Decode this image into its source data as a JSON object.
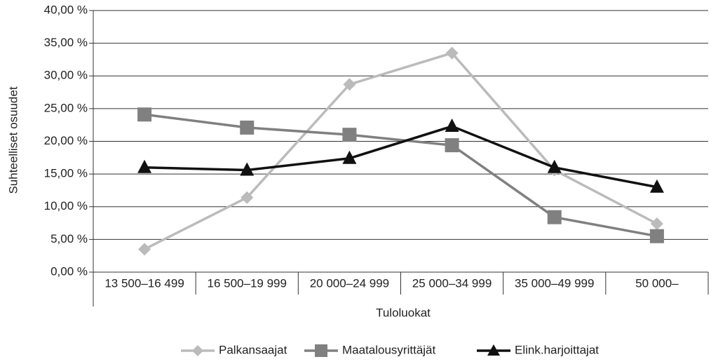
{
  "chart_data": {
    "type": "line",
    "y_label": "Suhteelliset osuudet",
    "x_label": "Tuloluokat",
    "categories": [
      "13 500–16 499",
      "16 500–19 999",
      "20 000–24 999",
      "25 000–34 999",
      "35 000–49 999",
      "50 000–"
    ],
    "series": [
      {
        "name": "Palkansaajat",
        "color": "#bbbbbb",
        "marker": "diamond",
        "values": [
          3.5,
          11.4,
          28.7,
          33.5,
          15.6,
          7.4
        ]
      },
      {
        "name": "Maatalousyrittäjät",
        "color": "#808080",
        "marker": "square",
        "values": [
          24.1,
          22.1,
          21.0,
          19.4,
          8.4,
          5.5
        ]
      },
      {
        "name": "Elink.harjoittajat",
        "color": "#111111",
        "marker": "triangle",
        "values": [
          16.0,
          15.6,
          17.4,
          22.3,
          16.0,
          13.0
        ]
      }
    ],
    "ylim": [
      0,
      40
    ],
    "yticks": [
      {
        "value": 0,
        "label": "0,00 %"
      },
      {
        "value": 5,
        "label": "5,00 %"
      },
      {
        "value": 10,
        "label": "10,00 %"
      },
      {
        "value": 15,
        "label": "15,00 %"
      },
      {
        "value": 20,
        "label": "20,00 %"
      },
      {
        "value": 25,
        "label": "25,00 %"
      },
      {
        "value": 30,
        "label": "30,00 %"
      },
      {
        "value": 35,
        "label": "35,00 %"
      },
      {
        "value": 40,
        "label": "40,00 %"
      }
    ],
    "grid": true,
    "legend": "bottom"
  }
}
